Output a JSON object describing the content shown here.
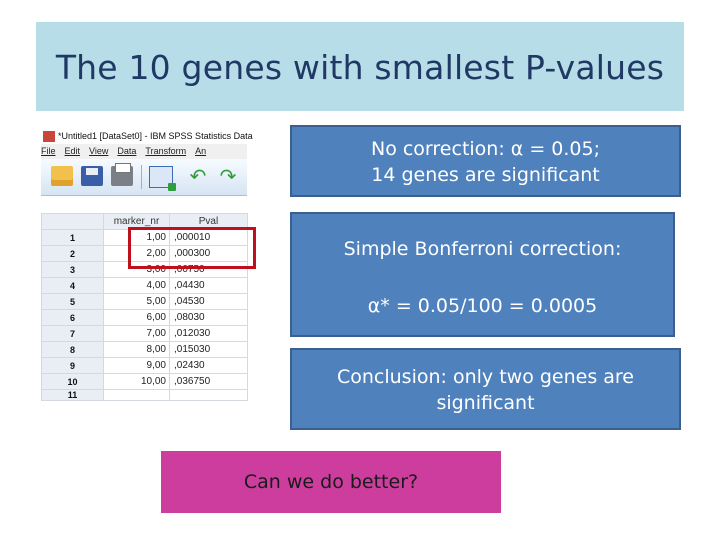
{
  "slide": {
    "title": "The 10 genes with smallest P-values"
  },
  "spss": {
    "window_title": "*Untitled1 [DataSet0] - IBM SPSS Statistics Data",
    "menus": [
      "File",
      "Edit",
      "View",
      "Data",
      "Transform",
      "An"
    ],
    "toolbar_icons": [
      "open-folder-icon",
      "save-icon",
      "print-icon",
      "goto-case-icon",
      "undo-icon",
      "redo-icon"
    ],
    "columns": [
      "",
      "marker_nr",
      "Pval"
    ],
    "rows": [
      {
        "n": "1",
        "marker": "1,00",
        "pval": ",000010"
      },
      {
        "n": "2",
        "marker": "2,00",
        "pval": ",000300"
      },
      {
        "n": "3",
        "marker": "3,00",
        "pval": ",00750"
      },
      {
        "n": "4",
        "marker": "4,00",
        "pval": ",04430"
      },
      {
        "n": "5",
        "marker": "5,00",
        "pval": ",04530"
      },
      {
        "n": "6",
        "marker": "6,00",
        "pval": ",08030"
      },
      {
        "n": "7",
        "marker": "7,00",
        "pval": ",012030"
      },
      {
        "n": "8",
        "marker": "8,00",
        "pval": ",015030"
      },
      {
        "n": "9",
        "marker": "9,00",
        "pval": ",02430"
      },
      {
        "n": "10",
        "marker": "10,00",
        "pval": ",036750"
      },
      {
        "n": "11",
        "marker": "",
        "pval": ""
      }
    ]
  },
  "boxes": {
    "no_correction_line1": "No correction: α = 0.05;",
    "no_correction_line2": "14 genes are significant",
    "bonferroni_line1": "Simple  Bonferroni correction:",
    "bonferroni_line2": "α* = 0.05/100 = 0.0005",
    "conclusion_line1": "Conclusion: only two genes are",
    "conclusion_line2": "significant",
    "question": "Can we do better?"
  },
  "colors": {
    "title_band": "#b7dde8",
    "callout_blue": "#4f81bd",
    "question_pink": "#cd3d9e",
    "highlight_red": "#c0101d"
  }
}
